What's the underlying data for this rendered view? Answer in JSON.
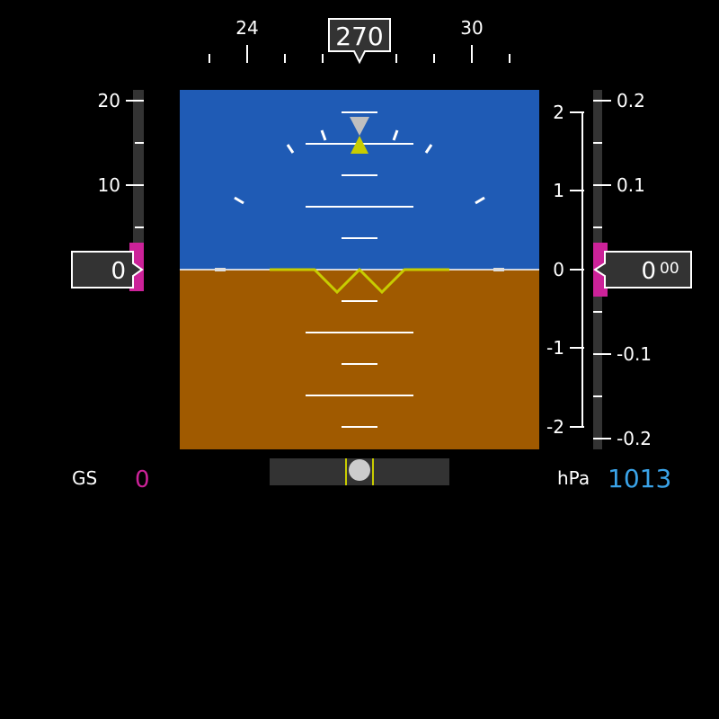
{
  "heading": {
    "value": "270",
    "scale_labels": [
      "24",
      "30"
    ]
  },
  "speed_tape": {
    "labels": [
      "20",
      "10"
    ],
    "readout": "0"
  },
  "vsi_scale": {
    "labels": [
      "2",
      "1",
      "0",
      "-1",
      "-2"
    ]
  },
  "altitude_tape": {
    "labels": [
      "0.2",
      "0.1",
      "-0.1",
      "-0.2"
    ],
    "readout_main": "0",
    "readout_small": "00"
  },
  "ground_speed": {
    "label": "GS",
    "value": "0"
  },
  "pressure": {
    "label": "hPa",
    "value": "1013"
  },
  "colors": {
    "sky": "#1f5bb5",
    "ground": "#a05a00",
    "symbol_yellow": "#c8cc00",
    "magenta": "#cc2299",
    "pressure_blue": "#3aa3e8",
    "box_fill": "#333333",
    "tape_fill": "#333333"
  }
}
